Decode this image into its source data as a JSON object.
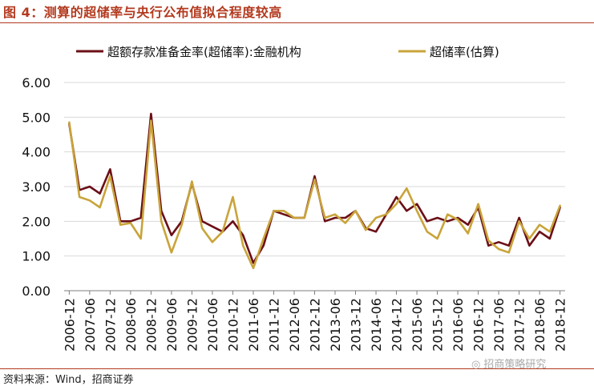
{
  "title": "图 4：测算的超储率与央行公布值拟合程度较高",
  "source": "资料来源：Wind，招商证券",
  "watermark": "招商策略研究",
  "colors": {
    "accent": "#b33a1f",
    "series_official": "#6b0f17",
    "series_estimated": "#c9a43a",
    "grid": "#d9d9d9"
  },
  "chart_data": {
    "type": "line",
    "ylim": [
      0,
      6
    ],
    "yticks": [
      "0.00",
      "1.00",
      "2.00",
      "3.00",
      "4.00",
      "5.00",
      "6.00"
    ],
    "grid": "horizontal",
    "legend_position": "top",
    "x_tick_labels": [
      "2006-12",
      "2007-06",
      "2007-12",
      "2008-06",
      "2008-12",
      "2009-06",
      "2009-12",
      "2010-06",
      "2010-12",
      "2011-06",
      "2011-12",
      "2012-06",
      "2012-12",
      "2013-06",
      "2013-12",
      "2014-06",
      "2014-12",
      "2015-06",
      "2015-12",
      "2016-06",
      "2016-12",
      "2017-06",
      "2017-12",
      "2018-06",
      "2018-12"
    ],
    "x": [
      "2006-12",
      "2007-03",
      "2007-06",
      "2007-09",
      "2007-12",
      "2008-03",
      "2008-06",
      "2008-09",
      "2008-12",
      "2009-03",
      "2009-06",
      "2009-09",
      "2009-12",
      "2010-03",
      "2010-06",
      "2010-09",
      "2010-12",
      "2011-03",
      "2011-06",
      "2011-09",
      "2011-12",
      "2012-03",
      "2012-06",
      "2012-09",
      "2012-12",
      "2013-03",
      "2013-06",
      "2013-09",
      "2013-12",
      "2014-03",
      "2014-06",
      "2014-09",
      "2014-12",
      "2015-03",
      "2015-06",
      "2015-09",
      "2015-12",
      "2016-03",
      "2016-06",
      "2016-09",
      "2016-12",
      "2017-03",
      "2017-06",
      "2017-09",
      "2017-12",
      "2018-03",
      "2018-06",
      "2018-09",
      "2018-12"
    ],
    "series": [
      {
        "name": "超额存款准备金率(超储率):金融机构",
        "color": "#6b0f17",
        "values": [
          4.8,
          2.9,
          3.0,
          2.8,
          3.5,
          2.0,
          2.0,
          2.1,
          5.1,
          2.3,
          1.6,
          2.0,
          3.1,
          2.0,
          1.85,
          1.7,
          2.0,
          1.6,
          0.8,
          1.3,
          2.3,
          2.2,
          2.1,
          2.1,
          3.3,
          2.0,
          2.1,
          2.1,
          2.3,
          1.8,
          1.7,
          2.2,
          2.7,
          2.3,
          2.5,
          2.0,
          2.1,
          2.0,
          2.1,
          1.9,
          2.4,
          1.3,
          1.4,
          1.3,
          2.1,
          1.3,
          1.7,
          1.5,
          2.4
        ]
      },
      {
        "name": "超储率(估算)",
        "color": "#c9a43a",
        "values": [
          4.85,
          2.7,
          2.6,
          2.4,
          3.3,
          1.9,
          1.95,
          1.5,
          4.9,
          2.0,
          1.1,
          1.9,
          3.15,
          1.8,
          1.4,
          1.7,
          2.7,
          1.3,
          0.65,
          1.5,
          2.3,
          2.3,
          2.1,
          2.1,
          3.2,
          2.1,
          2.2,
          1.95,
          2.3,
          1.75,
          2.1,
          2.2,
          2.5,
          2.95,
          2.3,
          1.7,
          1.5,
          2.2,
          2.05,
          1.65,
          2.5,
          1.45,
          1.2,
          1.1,
          2.0,
          1.5,
          1.9,
          1.7,
          2.45
        ]
      }
    ]
  }
}
